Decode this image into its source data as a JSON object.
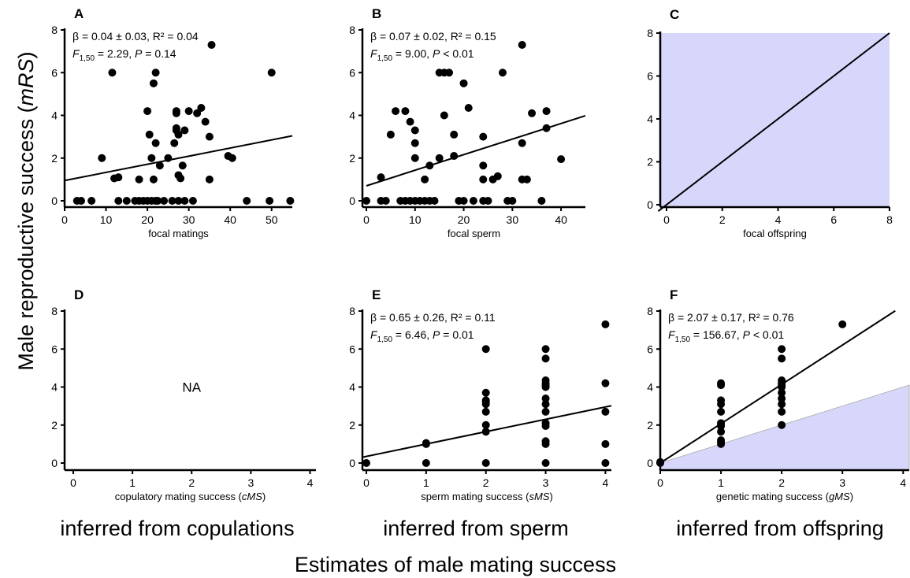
{
  "figure": {
    "ylabel_main": "Male reproductive success (",
    "ylabel_italic": "mRS",
    "ylabel_close": ")",
    "xlabel_main": "Estimates of male mating success",
    "captions": [
      "inferred from copulations",
      "inferred from sperm",
      "inferred from offspring"
    ]
  },
  "chart_data": [
    {
      "panel": "A",
      "type": "scatter",
      "xlabel": "focal matings",
      "xlabel_italic": "",
      "xlabel_close": "",
      "xlim": [
        0,
        55
      ],
      "ylim": [
        0,
        8
      ],
      "xticks": [
        0,
        10,
        20,
        30,
        40,
        50
      ],
      "yticks": [
        0,
        2,
        4,
        6,
        8
      ],
      "stat_line1": "β = 0.04 ± 0.03, R² = 0.04",
      "stat_f": "F",
      "stat_sub": "1,50",
      "stat_line2": " = 2.29, ",
      "stat_p": "P",
      "stat_line2b": " = 0.14",
      "fit": {
        "intercept": 0.95,
        "slope": 0.038
      },
      "shade": null,
      "na": "",
      "points": [
        [
          3,
          0
        ],
        [
          4,
          0
        ],
        [
          6.5,
          0
        ],
        [
          9,
          2
        ],
        [
          11.5,
          6
        ],
        [
          12,
          1.05
        ],
        [
          13,
          1.1
        ],
        [
          13,
          0
        ],
        [
          15,
          0
        ],
        [
          17,
          0
        ],
        [
          18,
          1
        ],
        [
          18,
          0
        ],
        [
          19,
          0
        ],
        [
          20,
          4.2
        ],
        [
          20,
          0
        ],
        [
          20.5,
          3.1
        ],
        [
          21,
          2
        ],
        [
          21,
          0
        ],
        [
          21.5,
          1
        ],
        [
          21.5,
          5.5
        ],
        [
          22,
          0
        ],
        [
          22,
          6
        ],
        [
          22,
          2.7
        ],
        [
          22.5,
          0
        ],
        [
          23,
          1.65
        ],
        [
          24,
          0
        ],
        [
          25,
          2
        ],
        [
          26,
          0
        ],
        [
          26.5,
          2.7
        ],
        [
          27,
          4.1
        ],
        [
          27,
          4.2
        ],
        [
          27,
          3.3
        ],
        [
          27,
          3.4
        ],
        [
          27.5,
          3.1
        ],
        [
          27.5,
          1.2
        ],
        [
          27.5,
          0
        ],
        [
          28,
          1.05
        ],
        [
          28.5,
          1.65
        ],
        [
          29,
          0
        ],
        [
          29,
          3.3
        ],
        [
          30,
          4.2
        ],
        [
          31,
          0
        ],
        [
          32,
          4.1
        ],
        [
          33,
          4.35
        ],
        [
          34,
          3.7
        ],
        [
          35,
          1
        ],
        [
          35,
          3
        ],
        [
          35.5,
          7.3
        ],
        [
          39.5,
          2.1
        ],
        [
          40.5,
          2
        ],
        [
          44,
          0
        ],
        [
          49.5,
          0
        ],
        [
          50,
          6
        ],
        [
          54.5,
          0
        ]
      ]
    },
    {
      "panel": "B",
      "type": "scatter",
      "xlabel": "focal sperm",
      "xlabel_italic": "",
      "xlabel_close": "",
      "xlim": [
        0,
        45
      ],
      "ylim": [
        0,
        8
      ],
      "xticks": [
        0,
        10,
        20,
        30,
        40
      ],
      "yticks": [
        0,
        2,
        4,
        6,
        8
      ],
      "stat_line1": "β = 0.07 ± 0.02, R² = 0.15",
      "stat_f": "F",
      "stat_sub": "1,50",
      "stat_line2": " = 9.00, ",
      "stat_p": "P",
      "stat_line2b": " < 0.01",
      "fit": {
        "intercept": 0.7,
        "slope": 0.073
      },
      "shade": null,
      "na": "",
      "points": [
        [
          0,
          0
        ],
        [
          3,
          1.1
        ],
        [
          3,
          0
        ],
        [
          4,
          0
        ],
        [
          5,
          3.1
        ],
        [
          6,
          4.2
        ],
        [
          7,
          0
        ],
        [
          8,
          4.2
        ],
        [
          8,
          0
        ],
        [
          9,
          3.7
        ],
        [
          9,
          0
        ],
        [
          10,
          3.3
        ],
        [
          10,
          2.7
        ],
        [
          10,
          2
        ],
        [
          10,
          0
        ],
        [
          11,
          0
        ],
        [
          12,
          0
        ],
        [
          12,
          1
        ],
        [
          13,
          1.65
        ],
        [
          13,
          0
        ],
        [
          14,
          0
        ],
        [
          15,
          2
        ],
        [
          15,
          6
        ],
        [
          16,
          4
        ],
        [
          16,
          6
        ],
        [
          17,
          6
        ],
        [
          18,
          3.1
        ],
        [
          18,
          2.1
        ],
        [
          19,
          0
        ],
        [
          20,
          5.5
        ],
        [
          20,
          0
        ],
        [
          21,
          4.35
        ],
        [
          22,
          0
        ],
        [
          24,
          3
        ],
        [
          24,
          1.65
        ],
        [
          24,
          1
        ],
        [
          24,
          0
        ],
        [
          25,
          0
        ],
        [
          26,
          1
        ],
        [
          27,
          1.15
        ],
        [
          28,
          6
        ],
        [
          29,
          0
        ],
        [
          30,
          0
        ],
        [
          32,
          7.3
        ],
        [
          32,
          2.7
        ],
        [
          32,
          1
        ],
        [
          33,
          1
        ],
        [
          34,
          4.1
        ],
        [
          36,
          0
        ],
        [
          37,
          4.2
        ],
        [
          37,
          3.4
        ],
        [
          40,
          1.95
        ]
      ]
    },
    {
      "panel": "C",
      "type": "line",
      "xlabel": "focal offspring",
      "xlabel_italic": "",
      "xlabel_close": "",
      "xlim": [
        -0.3,
        8
      ],
      "ylim": [
        -0.3,
        8
      ],
      "xticks": [
        0,
        2,
        4,
        6,
        8
      ],
      "yticks": [
        0,
        2,
        4,
        6,
        8
      ],
      "stat_line1": "",
      "stat_f": "",
      "stat_sub": "",
      "stat_line2": "",
      "stat_p": "",
      "stat_line2b": "",
      "fit": {
        "intercept": 0,
        "slope": 1
      },
      "shade": "full",
      "na": "",
      "points": []
    },
    {
      "panel": "D",
      "type": "scatter",
      "xlabel": "copulatory mating success (",
      "xlabel_italic": "cMS",
      "xlabel_close": ")",
      "xlim": [
        -0.2,
        4.1
      ],
      "ylim": [
        -0.1,
        8
      ],
      "xticks": [
        0,
        1,
        2,
        3,
        4
      ],
      "yticks": [
        0,
        2,
        4,
        6,
        8
      ],
      "stat_line1": "",
      "stat_f": "",
      "stat_sub": "",
      "stat_line2": "",
      "stat_p": "",
      "stat_line2b": "",
      "fit": null,
      "shade": null,
      "na": "NA",
      "points": []
    },
    {
      "panel": "E",
      "type": "scatter",
      "xlabel": "sperm mating success (",
      "xlabel_italic": "sMS",
      "xlabel_close": ")",
      "xlim": [
        -0.2,
        4.1
      ],
      "ylim": [
        -0.1,
        8
      ],
      "xticks": [
        0,
        1,
        2,
        3,
        4
      ],
      "yticks": [
        0,
        2,
        4,
        6,
        8
      ],
      "stat_line1": "β = 0.65 ± 0.26, R² = 0.11",
      "stat_f": "F",
      "stat_sub": "1,50",
      "stat_line2": " = 6.46, ",
      "stat_p": "P",
      "stat_line2b": " = 0.01",
      "fit": {
        "intercept": 0.35,
        "slope": 0.65
      },
      "shade": null,
      "na": "",
      "points": [
        [
          0,
          0
        ],
        [
          1,
          1.05
        ],
        [
          1,
          1
        ],
        [
          1,
          0
        ],
        [
          2,
          6
        ],
        [
          2,
          3.7
        ],
        [
          2,
          3.3
        ],
        [
          2,
          3.2
        ],
        [
          2,
          3.1
        ],
        [
          2,
          2.7
        ],
        [
          2,
          2
        ],
        [
          2,
          1.65
        ],
        [
          2,
          0
        ],
        [
          3,
          6
        ],
        [
          3,
          5.5
        ],
        [
          3,
          4.35
        ],
        [
          3,
          4.2
        ],
        [
          3,
          4.1
        ],
        [
          3,
          4
        ],
        [
          3,
          3.4
        ],
        [
          3,
          3.1
        ],
        [
          3,
          2.7
        ],
        [
          3,
          2.1
        ],
        [
          3,
          1.95
        ],
        [
          3,
          1.15
        ],
        [
          3,
          1
        ],
        [
          3,
          0
        ],
        [
          4,
          7.3
        ],
        [
          4,
          4.2
        ],
        [
          4,
          2.7
        ],
        [
          4,
          1
        ],
        [
          4,
          0
        ]
      ]
    },
    {
      "panel": "F",
      "type": "scatter",
      "xlabel": "genetic mating success (",
      "xlabel_italic": "gMS",
      "xlabel_close": ")",
      "xlim": [
        -0.2,
        4.1
      ],
      "ylim": [
        -0.1,
        8
      ],
      "xticks": [
        0,
        1,
        2,
        3,
        4
      ],
      "yticks": [
        0,
        2,
        4,
        6,
        8
      ],
      "stat_line1": "β = 2.07 ± 0.17, R² = 0.76",
      "stat_f": "F",
      "stat_sub": "1,50",
      "stat_line2": " = 156.67, ",
      "stat_p": "P",
      "stat_line2b": " < 0.01",
      "fit": {
        "intercept": 0,
        "slope": 2.07,
        "xmax": 3.87
      },
      "shade": "half",
      "na": "",
      "points": [
        [
          0,
          0
        ],
        [
          0,
          0.05
        ],
        [
          1,
          4.2
        ],
        [
          1,
          4.1
        ],
        [
          1,
          3.3
        ],
        [
          1,
          3.1
        ],
        [
          1,
          2.7
        ],
        [
          1,
          2.1
        ],
        [
          1,
          2
        ],
        [
          1,
          1.95
        ],
        [
          1,
          1.65
        ],
        [
          1,
          1.2
        ],
        [
          1,
          1.1
        ],
        [
          1,
          1
        ],
        [
          2,
          6
        ],
        [
          2,
          5.5
        ],
        [
          2,
          4.35
        ],
        [
          2,
          4.2
        ],
        [
          2,
          4.1
        ],
        [
          2,
          4
        ],
        [
          2,
          3.7
        ],
        [
          2,
          3.4
        ],
        [
          2,
          3.1
        ],
        [
          2,
          2.7
        ],
        [
          2,
          2
        ],
        [
          3,
          7.3
        ]
      ]
    }
  ]
}
